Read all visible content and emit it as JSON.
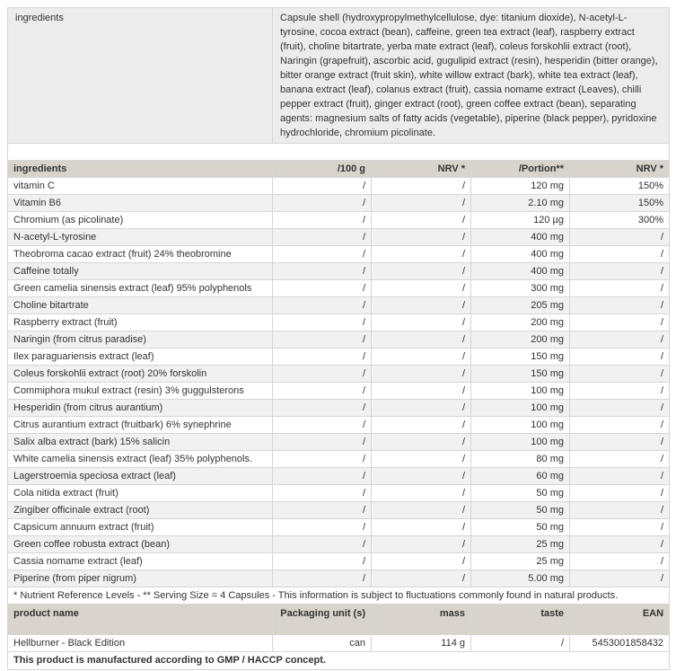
{
  "ingredients_block": {
    "label": "ingredients",
    "text": "Capsule shell (hydroxypropylmethylcellulose, dye: titanium dioxide), N-acetyl-L-tyrosine, cocoa extract (bean), caffeine, green tea extract (leaf), raspberry extract (fruit), choline bitartrate, yerba mate extract (leaf), coleus forskohlii extract (root), Naringin (grapefruit), ascorbic acid, gugulipid extract (resin), hesperidin (bitter orange), bitter orange extract (fruit skin), white willow extract (bark), white tea extract (leaf), banana extract (leaf), colanus extract (fruit), cassia nomame extract (Leaves), chilli pepper extract (fruit), ginger extract (root), green coffee extract (bean), separating agents: magnesium salts of fatty acids (vegetable), piperine (black pepper), pyridoxine hydrochloride, chromium picolinate."
  },
  "nutrition": {
    "headers": [
      "ingredients",
      "/100 g",
      "NRV *",
      "/Portion**",
      "NRV *"
    ],
    "rows": [
      [
        "vitamin C",
        "/",
        "/",
        "120 mg",
        "150%"
      ],
      [
        "Vitamin B6",
        "/",
        "/",
        "2.10 mg",
        "150%"
      ],
      [
        "Chromium (as picolinate)",
        "/",
        "/",
        "120 µg",
        "300%"
      ],
      [
        "N-acetyl-L-tyrosine",
        "/",
        "/",
        "400 mg",
        "/"
      ],
      [
        "Theobroma cacao extract (fruit) 24% theobromine",
        "/",
        "/",
        "400 mg",
        "/"
      ],
      [
        "Caffeine totally",
        "/",
        "/",
        "400 mg",
        "/"
      ],
      [
        "Green camelia sinensis extract (leaf) 95% polyphenols",
        "/",
        "/",
        "300 mg",
        "/"
      ],
      [
        "Choline bitartrate",
        "/",
        "/",
        "205 mg",
        "/"
      ],
      [
        "Raspberry extract (fruit)",
        "/",
        "/",
        "200 mg",
        "/"
      ],
      [
        "Naringin (from citrus paradise)",
        "/",
        "/",
        "200 mg",
        "/"
      ],
      [
        "Ilex paraguariensis extract (leaf)",
        "/",
        "/",
        "150 mg",
        "/"
      ],
      [
        "Coleus forskohlii extract (root) 20% forskolin",
        "/",
        "/",
        "150 mg",
        "/"
      ],
      [
        "Commiphora mukul extract (resin) 3% guggulsterons",
        "/",
        "/",
        "100 mg",
        "/"
      ],
      [
        "Hesperidin (from citrus aurantium)",
        "/",
        "/",
        "100 mg",
        "/"
      ],
      [
        "Citrus aurantium extract (fruitbark) 6% synephrine",
        "/",
        "/",
        "100 mg",
        "/"
      ],
      [
        "Salix alba extract (bark) 15% salicin",
        "/",
        "/",
        "100 mg",
        "/"
      ],
      [
        "White camelia sinensis extract (leaf) 35% polyphenols.",
        "/",
        "/",
        "80 mg",
        "/"
      ],
      [
        "Lagerstroemia speciosa extract (leaf)",
        "/",
        "/",
        "60 mg",
        "/"
      ],
      [
        "Cola nitida extract (fruit)",
        "/",
        "/",
        "50 mg",
        "/"
      ],
      [
        "Zingiber officinale extract (root)",
        "/",
        "/",
        "50 mg",
        "/"
      ],
      [
        "Capsicum annuum extract (fruit)",
        "/",
        "/",
        "50 mg",
        "/"
      ],
      [
        "Green coffee robusta extract (bean)",
        "/",
        "/",
        "25 mg",
        "/"
      ],
      [
        "Cassia nomame extract (leaf)",
        "/",
        "/",
        "25 mg",
        "/"
      ],
      [
        "Piperine (from piper nigrum)",
        "/",
        "/",
        "5.00 mg",
        "/"
      ]
    ],
    "footnote": "* Nutrient Reference Levels - ** Serving Size = 4 Capsules - This information is subject to fluctuations commonly found in natural products."
  },
  "product": {
    "headers": [
      "product name",
      "Packaging unit (s)",
      "mass",
      "taste",
      "EAN"
    ],
    "row": [
      "Hellburner - Black Edition",
      "can",
      "114 g",
      "/",
      "5453001858432"
    ]
  },
  "manufacturing_note": "This product is manufactured according to GMP / HACCP concept."
}
